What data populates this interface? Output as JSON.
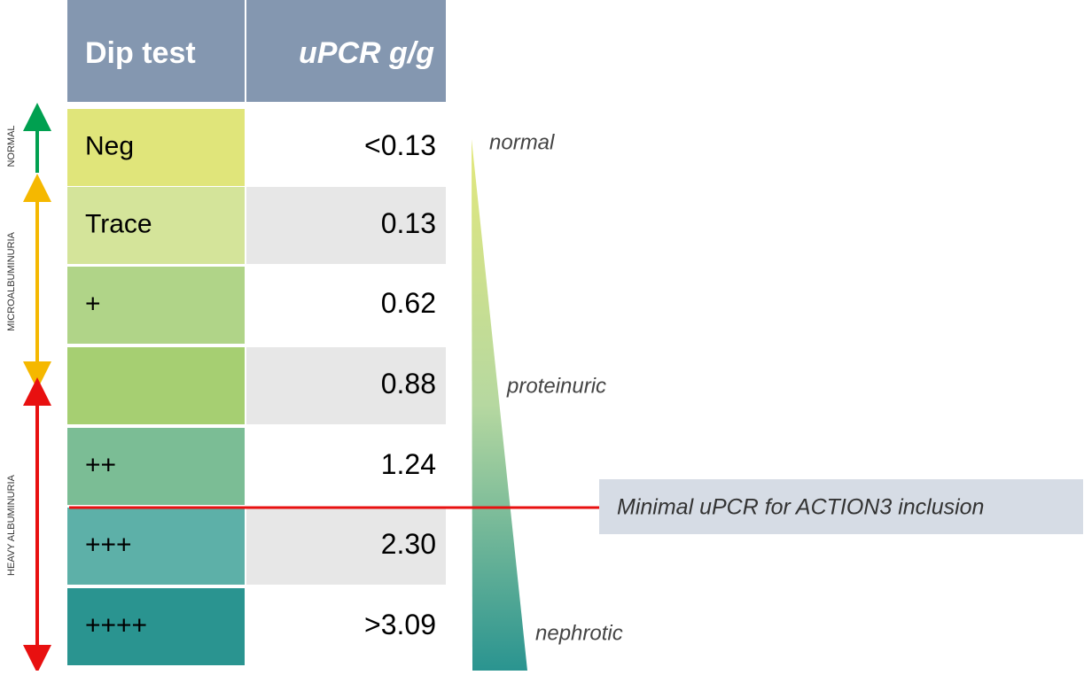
{
  "table": {
    "header": [
      "Dip test",
      "uPCR g/g"
    ],
    "rows": [
      {
        "dip": "Neg",
        "upcr": "<0.13"
      },
      {
        "dip": "Trace",
        "upcr": "0.13"
      },
      {
        "dip": "+",
        "upcr": "0.62"
      },
      {
        "upcr": "0.88"
      },
      {
        "dip": "++",
        "upcr": "1.24"
      },
      {
        "dip": "+++",
        "upcr": "2.30"
      },
      {
        "dip": "++++",
        "upcr": ">3.09"
      }
    ]
  },
  "side_labels": [
    "NORMAL",
    "MICROALBUMINURIA",
    "HEAVY ALBUMINURIA"
  ],
  "scale_labels": [
    "normal",
    "proteinuric",
    "nephrotic"
  ],
  "threshold_label": "Minimal uPCR for ACTION3 inclusion"
}
